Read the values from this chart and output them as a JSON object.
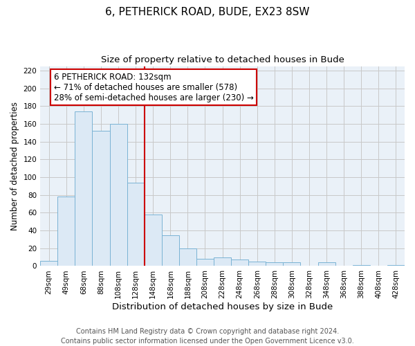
{
  "title": "6, PETHERICK ROAD, BUDE, EX23 8SW",
  "subtitle": "Size of property relative to detached houses in Bude",
  "xlabel": "Distribution of detached houses by size in Bude",
  "ylabel": "Number of detached properties",
  "bar_labels": [
    "29sqm",
    "49sqm",
    "68sqm",
    "88sqm",
    "108sqm",
    "128sqm",
    "148sqm",
    "168sqm",
    "188sqm",
    "208sqm",
    "228sqm",
    "248sqm",
    "268sqm",
    "288sqm",
    "308sqm",
    "328sqm",
    "348sqm",
    "368sqm",
    "388sqm",
    "408sqm",
    "428sqm"
  ],
  "bar_values": [
    6,
    78,
    174,
    152,
    160,
    94,
    58,
    35,
    20,
    8,
    10,
    7,
    5,
    4,
    4,
    0,
    4,
    0,
    1,
    0,
    1
  ],
  "bar_color": "#dce9f5",
  "bar_edge_color": "#7ab3d4",
  "plot_bg_color": "#eaf1f8",
  "reference_line_color": "#cc0000",
  "annotation_title": "6 PETHERICK ROAD: 132sqm",
  "annotation_line1": "← 71% of detached houses are smaller (578)",
  "annotation_line2": "28% of semi-detached houses are larger (230) →",
  "annotation_box_color": "#ffffff",
  "annotation_box_edge_color": "#cc0000",
  "ylim": [
    0,
    225
  ],
  "yticks": [
    0,
    20,
    40,
    60,
    80,
    100,
    120,
    140,
    160,
    180,
    200,
    220
  ],
  "footer_line1": "Contains HM Land Registry data © Crown copyright and database right 2024.",
  "footer_line2": "Contains public sector information licensed under the Open Government Licence v3.0.",
  "title_fontsize": 11,
  "subtitle_fontsize": 9.5,
  "xlabel_fontsize": 9.5,
  "ylabel_fontsize": 8.5,
  "tick_fontsize": 7.5,
  "annotation_fontsize": 8.5,
  "footer_fontsize": 7
}
